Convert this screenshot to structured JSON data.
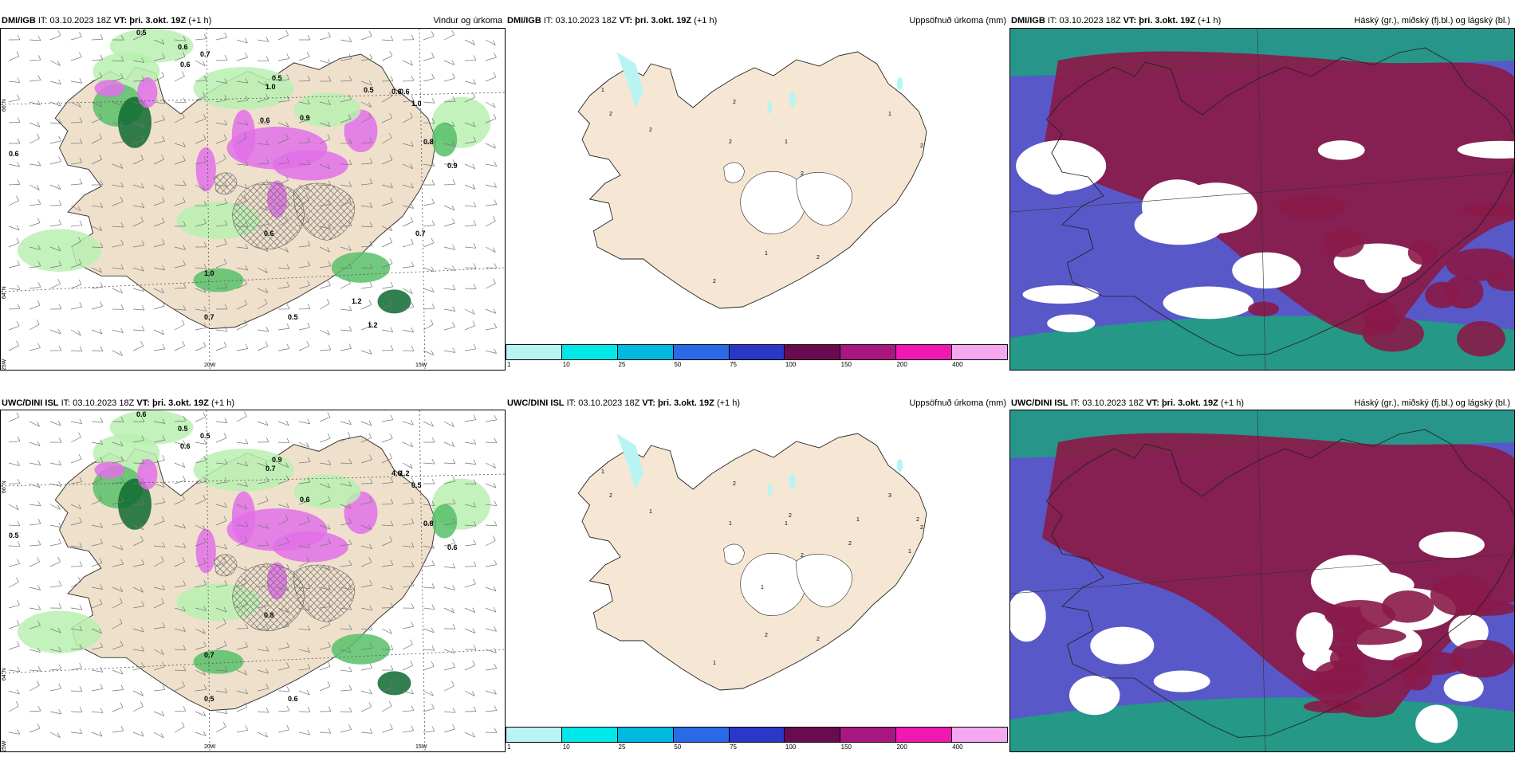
{
  "panels": [
    {
      "model": "DMI/IGB",
      "it_prefix": "IT:",
      "it": "03.10.2023 18Z",
      "vt_prefix": "VT:",
      "vt": "þri. 3.okt. 19Z",
      "offset": "(+1 h)",
      "title": "Vindur og úrkoma"
    },
    {
      "model": "DMI/IGB",
      "it_prefix": "IT:",
      "it": "03.10.2023 18Z",
      "vt_prefix": "VT:",
      "vt": "þri. 3.okt. 19Z",
      "offset": "(+1 h)",
      "title": "Uppsöfnuð úrkoma (mm)"
    },
    {
      "model": "DMI/IGB",
      "it_prefix": "IT:",
      "it": "03.10.2023 18Z",
      "vt_prefix": "VT:",
      "vt": "þri. 3.okt. 19Z",
      "offset": "(+1 h)",
      "title": "Háský (gr.), miðský (fj.bl.) og lágský (bl.)"
    },
    {
      "model": "UWC/DINI ISL",
      "it_prefix": "IT:",
      "it": "03.10.2023 18Z",
      "vt_prefix": "VT:",
      "vt": "þri. 3.okt. 19Z",
      "offset": "(+1 h)",
      "title": ""
    },
    {
      "model": "UWC/DINI ISL",
      "it_prefix": "IT:",
      "it": "03.10.2023 18Z",
      "vt_prefix": "VT:",
      "vt": "þri. 3.okt. 19Z",
      "offset": "(+1 h)",
      "title": "Uppsöfnuð úrkoma (mm)"
    },
    {
      "model": "UWC/DINI ISL",
      "it_prefix": "IT:",
      "it": "03.10.2023 18Z",
      "vt_prefix": "VT:",
      "vt": "þri. 3.okt. 19Z",
      "offset": "(+1 h)",
      "title": "Háský (gr.), miðský (fj.bl.) og lágský (bl.)"
    }
  ],
  "grid_labels": {
    "lat66": "66°N",
    "lat64": "64°N",
    "lon20": "20W",
    "lon15": "15W",
    "lon25": "25W"
  },
  "colorbar": {
    "ticks": [
      "1",
      "10",
      "25",
      "50",
      "75",
      "100",
      "150",
      "200",
      "400"
    ],
    "colors": [
      "#b8f4f4",
      "#00e8e8",
      "#00b8e0",
      "#2a6ae8",
      "#2a38c8",
      "#6a0a50",
      "#a81880",
      "#f018b0",
      "#f4a8f0"
    ]
  },
  "rain_labels_top": [
    "0.5",
    "0.6",
    "0.7",
    "0.6",
    "0.5",
    "1.0",
    "0.6",
    "1.0",
    "0.9",
    "0.8",
    "0.9",
    "0.6",
    "0.6",
    "0.6",
    "1.0",
    "0.5",
    "0.7",
    "1.2",
    "1.2",
    "0.5",
    "0.6",
    "0.7"
  ],
  "rain_labels_bottom": [
    "0.6",
    "0.5",
    "0.5",
    "0.6",
    "0.9",
    "0.7",
    "1.2",
    "0.5",
    "0.6",
    "0.8",
    "0.6",
    "0.5",
    "4.6",
    "0.8",
    "0.7",
    "0.6",
    "0.5"
  ],
  "accum_labels_top": [
    "2",
    "1",
    "2",
    "2",
    "2",
    "1",
    "2",
    "1",
    "2",
    "1",
    "2",
    "2"
  ],
  "accum_labels_bottom": [
    "2",
    "1",
    "1",
    "2",
    "1",
    "1",
    "2",
    "2",
    "1",
    "3",
    "2",
    "2",
    "1",
    "2",
    "1",
    "2",
    "1",
    "2"
  ],
  "colors": {
    "land": "#f6e6d4",
    "land_wind": "#efe0cc",
    "rain_green_light": "#b8f0b0",
    "rain_green": "#58c068",
    "rain_green_dark": "#0e6a30",
    "rain_magenta": "#e070e8",
    "cloud_high": "#8a1a48",
    "cloud_mid": "#5858c8",
    "cloud_low": "#20a080"
  }
}
